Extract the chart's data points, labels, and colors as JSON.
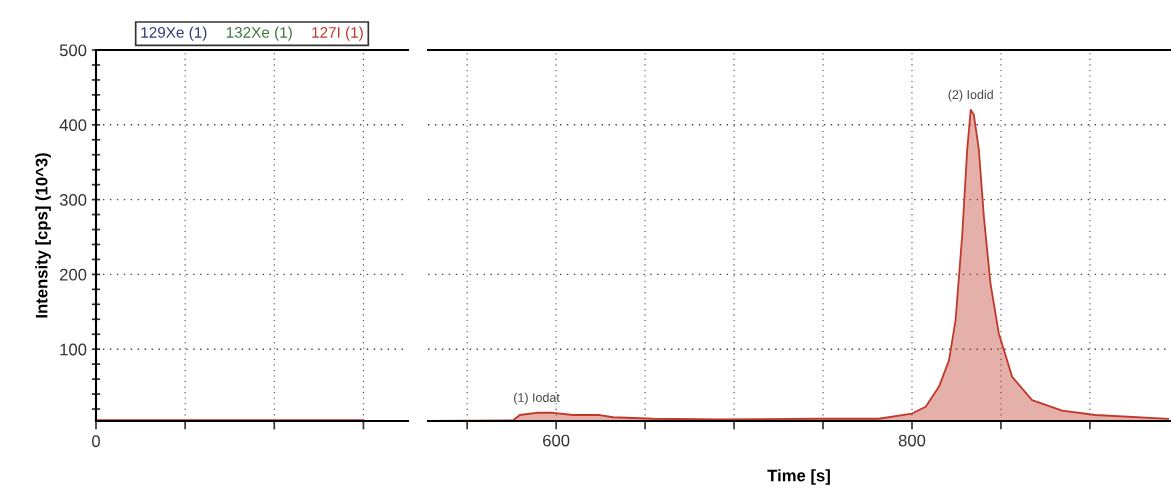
{
  "chart_data": [
    {
      "type": "area",
      "ylabel": "Intensity [cps] (10^3)",
      "legend": "top",
      "grid": true,
      "categories": [
        null,
        null,
        null,
        null
      ],
      "annotations": [
        "0"
      ],
      "ylim": [
        4,
        500
      ],
      "yticks": [
        {
          "value": 20,
          "label": null
        },
        {
          "value": 40,
          "label": null
        },
        {
          "value": 60,
          "label": null
        },
        {
          "value": 80,
          "label": null
        },
        100,
        {
          "value": 120,
          "label": null
        },
        {
          "value": 140,
          "label": null
        },
        {
          "value": 160,
          "label": null
        },
        {
          "value": 180,
          "label": null
        },
        200,
        {
          "value": 220,
          "label": null
        },
        {
          "value": 240,
          "label": null
        },
        {
          "value": 260,
          "label": null
        },
        {
          "value": 280,
          "label": null
        },
        300,
        {
          "value": 320,
          "label": null
        },
        {
          "value": 340,
          "label": null
        },
        {
          "value": 360,
          "label": null
        },
        {
          "value": 380,
          "label": null
        },
        400,
        {
          "value": 420,
          "label": null
        },
        {
          "value": 440,
          "label": null
        },
        {
          "value": 460,
          "label": null
        },
        {
          "value": 480,
          "label": null
        },
        500
      ],
      "series": [
        {
          "name": "129Xe (1)",
          "color": "#2e3a78",
          "type": "line",
          "values": [
            null,
            null,
            null,
            null
          ]
        },
        {
          "name": "132Xe (1)",
          "color": "#3a7a3a",
          "type": "line",
          "values": [
            null,
            null,
            null,
            null
          ]
        },
        {
          "name": "127I (1)",
          "color": "#c0392b",
          "values": [
            5,
            5,
            5,
            5
          ]
        }
      ]
    },
    {
      "type": "area",
      "xlabel": "Time [s]",
      "grid": true,
      "tick_labels": "x",
      "xlim": [
        528,
        945
      ],
      "xticks": [
        {
          "value": 550,
          "label": null
        },
        600,
        {
          "value": 650,
          "label": null
        },
        {
          "value": 700,
          "label": null
        },
        {
          "value": 750,
          "label": null
        },
        800,
        {
          "value": 850,
          "label": null
        },
        {
          "value": 900,
          "label": null
        }
      ],
      "ylim": [
        4,
        500
      ],
      "yticks": [
        100,
        200,
        300,
        400,
        500
      ],
      "annotations": [
        {
          "text": "(1) Iodat",
          "x": 589,
          "y": 15
        },
        {
          "text": "(2) Iodid",
          "x": 833,
          "y": 420
        }
      ],
      "series": [
        {
          "color": "#c0392b",
          "x": [
            528.2,
            575.9,
            579.6,
            589,
            598.3,
            609.5,
            624.5,
            632,
            654.4,
            691.8,
            747.9,
            781.3,
            800,
            807.7,
            815.2,
            820.8,
            824.5,
            828.3,
            831,
            833,
            834.8,
            837.6,
            840.4,
            844.1,
            848.8,
            856.3,
            867.5,
            884.4,
            903,
            944
          ],
          "values": [
            4,
            5,
            12,
            15,
            15,
            12,
            12,
            9,
            7,
            6,
            7,
            7,
            14,
            23,
            50,
            85,
            139,
            255,
            366,
            420,
            413,
            366,
            277,
            188,
            121,
            63,
            32,
            18,
            12,
            7
          ]
        }
      ]
    }
  ]
}
